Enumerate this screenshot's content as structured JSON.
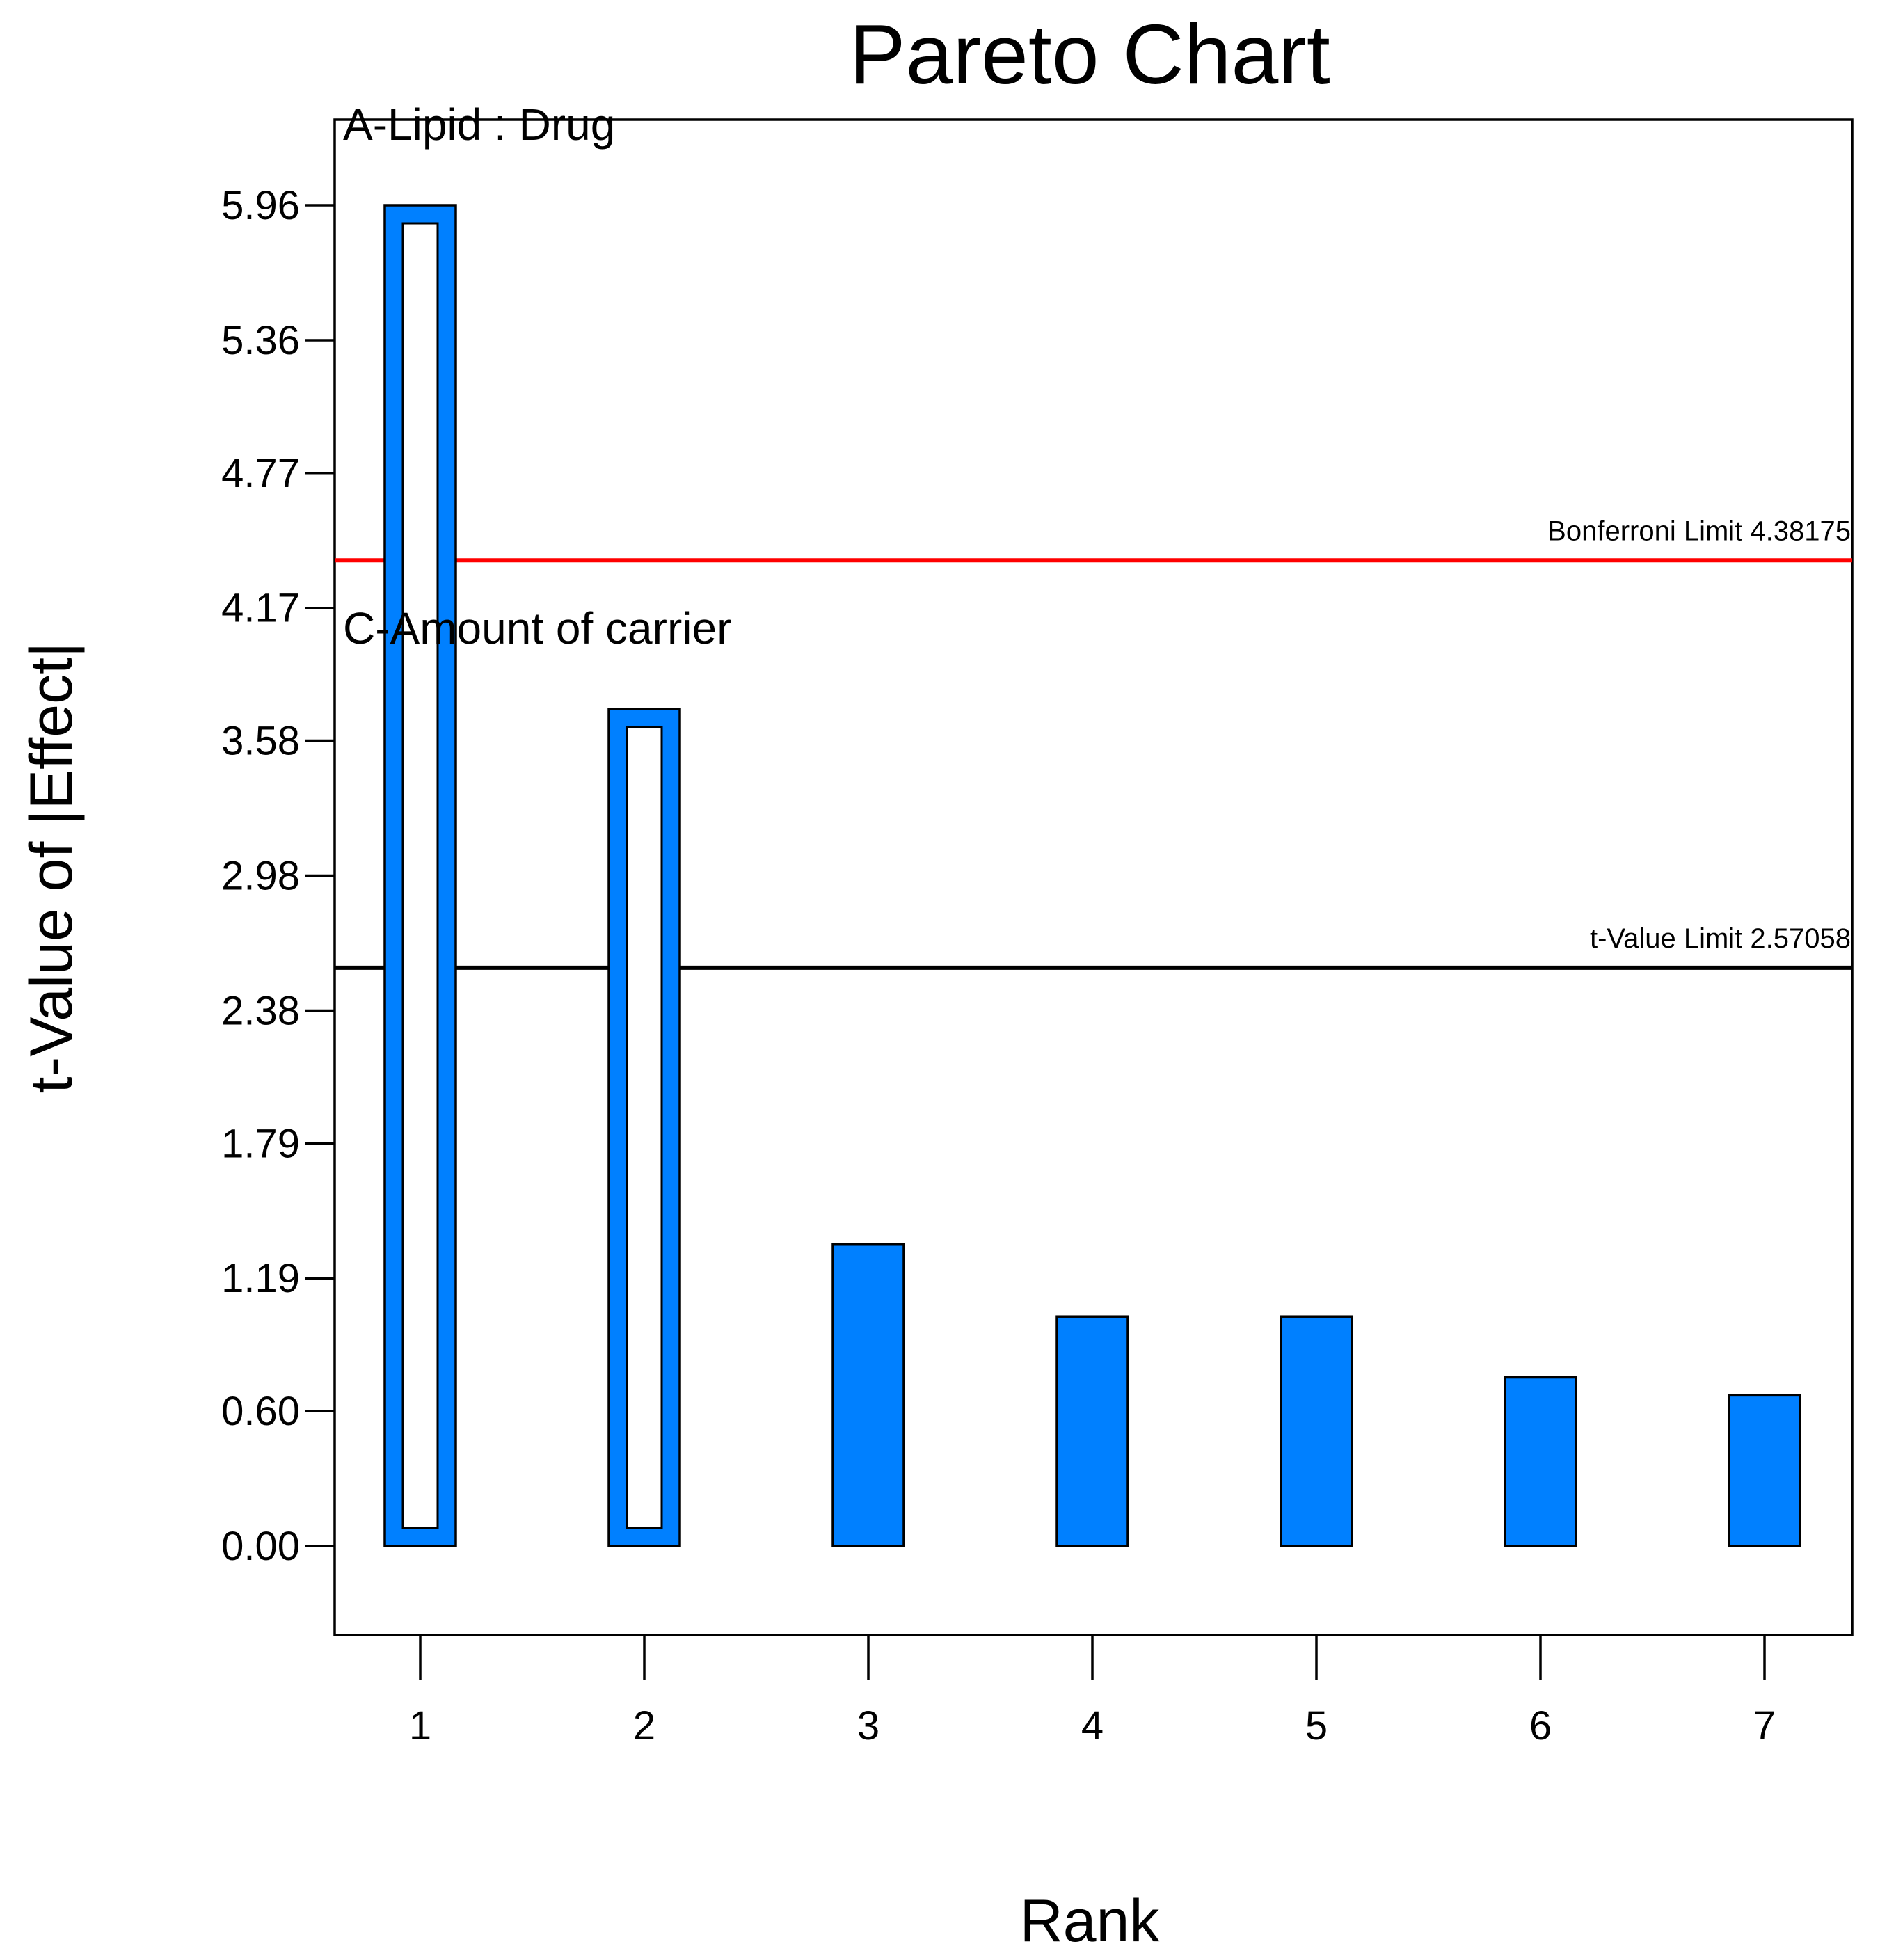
{
  "chart_data": {
    "type": "bar",
    "title": "Pareto Chart",
    "xlabel": "Rank",
    "ylabel": "t-Value of |Effect|",
    "categories": [
      "1",
      "2",
      "3",
      "4",
      "5",
      "6",
      "7"
    ],
    "values": [
      5.96,
      3.72,
      1.34,
      1.02,
      1.02,
      0.75,
      0.67
    ],
    "effect_sign": [
      "positive",
      "positive",
      "positive",
      "positive",
      "positive",
      "positive",
      "positive"
    ],
    "hollow_bars": [
      true,
      true,
      false,
      false,
      false,
      false,
      false
    ],
    "ylim": [
      -0.4,
      6.34
    ],
    "yticks": [
      "0.00",
      "0.60",
      "1.19",
      "1.79",
      "2.38",
      "2.98",
      "3.58",
      "4.17",
      "4.77",
      "5.36",
      "5.96"
    ],
    "bar_labels": [
      {
        "rank": 1,
        "text": "A-Lipid : Drug"
      },
      {
        "rank": 2,
        "text": "C-Amount of carrier"
      }
    ],
    "reference_lines": [
      {
        "name": "Bonferroni Limit",
        "value": 4.38175,
        "label": "Bonferroni Limit 4.38175",
        "color": "#ff0000"
      },
      {
        "name": "t-Value Limit",
        "value": 2.57058,
        "label": "t-Value Limit 2.57058",
        "color": "#000000"
      }
    ],
    "grid": false,
    "colors": {
      "bar_fill": "#0080ff",
      "bar_stroke": "#000000",
      "hollow_fill": "#ffffff"
    }
  }
}
